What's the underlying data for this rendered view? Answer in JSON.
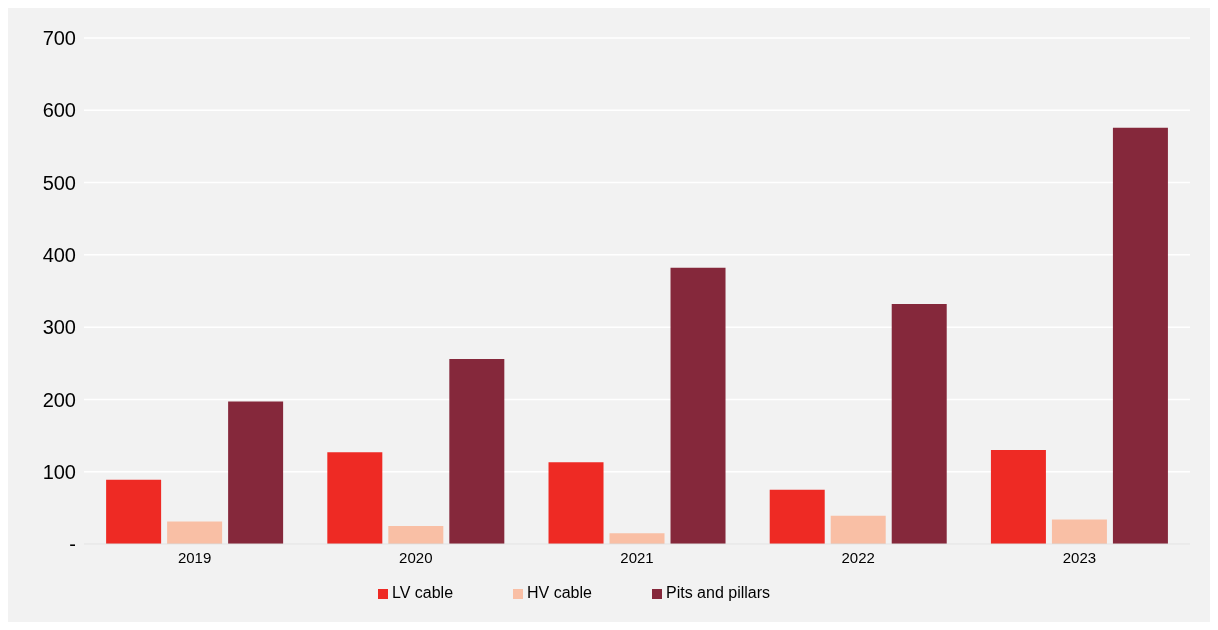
{
  "chart_data": {
    "type": "bar",
    "categories": [
      "2019",
      "2020",
      "2021",
      "2022",
      "2023"
    ],
    "series": [
      {
        "name": "LV cable",
        "color": "#ee2a24",
        "values": [
          89,
          127,
          113,
          75,
          130
        ]
      },
      {
        "name": "HV cable",
        "color": "#f9bfa5",
        "values": [
          31,
          25,
          15,
          39,
          34
        ]
      },
      {
        "name": "Pits and pillars",
        "color": "#85283b",
        "values": [
          197,
          256,
          382,
          332,
          576
        ]
      }
    ],
    "ylim": [
      0,
      700
    ],
    "yticks": [
      {
        "value": 0,
        "label": "-"
      },
      100,
      200,
      300,
      400,
      500,
      600,
      700
    ],
    "grid": "y",
    "legend": "bottom"
  }
}
